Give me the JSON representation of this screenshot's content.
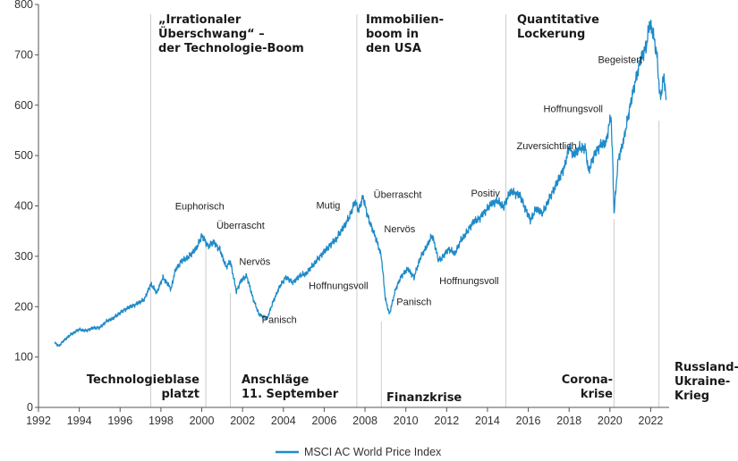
{
  "chart_data": {
    "type": "line",
    "title": "",
    "xlabel": "",
    "ylabel": "",
    "xlim": [
      1992,
      2022.9
    ],
    "ylim": [
      0,
      800
    ],
    "grid": false,
    "legend_position": "bottom-center",
    "colors": {
      "line": "#1f8bc9",
      "axis": "#555555",
      "guide": "#cccccc",
      "text": "#1a1a1a"
    },
    "x_ticks": [
      1992,
      1994,
      1996,
      1998,
      2000,
      2002,
      2004,
      2006,
      2008,
      2010,
      2012,
      2014,
      2016,
      2018,
      2020,
      2022
    ],
    "x_tick_labels": [
      "1992",
      "1994",
      "1996",
      "1998",
      "2000",
      "2002",
      "2004",
      "2006",
      "2008",
      "2010",
      "2012",
      "2014",
      "2016",
      "2018",
      "2020",
      "2022"
    ],
    "y_ticks": [
      0,
      100,
      200,
      300,
      400,
      500,
      600,
      700,
      800
    ],
    "y_tick_labels": [
      "0",
      "100",
      "200",
      "300",
      "400",
      "500",
      "600",
      "700",
      "800"
    ],
    "series": [
      {
        "name": "MSCI AC World Price Index",
        "x": [
          1992.8,
          1993.0,
          1993.3,
          1993.6,
          1994.0,
          1994.3,
          1994.7,
          1995.0,
          1995.3,
          1995.7,
          1996.0,
          1996.4,
          1996.8,
          1997.2,
          1997.5,
          1997.8,
          1998.1,
          1998.5,
          1998.7,
          1999.0,
          1999.4,
          1999.8,
          2000.0,
          2000.3,
          2000.6,
          2000.9,
          2001.2,
          2001.4,
          2001.7,
          2001.9,
          2002.2,
          2002.5,
          2002.8,
          2003.2,
          2003.5,
          2003.8,
          2004.1,
          2004.5,
          2004.8,
          2005.1,
          2005.5,
          2005.8,
          2006.2,
          2006.6,
          2006.9,
          2007.2,
          2007.5,
          2007.7,
          2007.9,
          2008.2,
          2008.5,
          2008.8,
          2009.0,
          2009.2,
          2009.5,
          2009.8,
          2010.1,
          2010.4,
          2010.7,
          2011.0,
          2011.3,
          2011.6,
          2011.8,
          2012.1,
          2012.4,
          2012.7,
          2013.0,
          2013.3,
          2013.6,
          2013.9,
          2014.2,
          2014.5,
          2014.8,
          2015.1,
          2015.4,
          2015.6,
          2015.9,
          2016.1,
          2016.4,
          2016.7,
          2017.0,
          2017.4,
          2017.8,
          2018.0,
          2018.2,
          2018.5,
          2018.8,
          2018.95,
          2019.2,
          2019.5,
          2019.8,
          2020.05,
          2020.15,
          2020.2,
          2020.4,
          2020.7,
          2020.9,
          2021.2,
          2021.5,
          2021.8,
          2021.95,
          2022.1,
          2022.3,
          2022.45,
          2022.55,
          2022.65,
          2022.75
        ],
        "values": [
          128,
          122,
          135,
          145,
          155,
          152,
          158,
          158,
          170,
          178,
          188,
          198,
          205,
          215,
          245,
          228,
          258,
          235,
          272,
          290,
          300,
          320,
          342,
          320,
          328,
          312,
          278,
          290,
          230,
          250,
          262,
          218,
          185,
          176,
          210,
          238,
          258,
          248,
          262,
          265,
          285,
          300,
          318,
          335,
          355,
          375,
          408,
          392,
          418,
          370,
          340,
          300,
          215,
          185,
          235,
          262,
          275,
          258,
          296,
          318,
          342,
          292,
          298,
          315,
          305,
          332,
          348,
          368,
          375,
          390,
          405,
          410,
          398,
          428,
          425,
          420,
          390,
          372,
          395,
          385,
          412,
          445,
          480,
          520,
          500,
          515,
          515,
          468,
          498,
          520,
          525,
          580,
          470,
          385,
          490,
          535,
          580,
          640,
          690,
          720,
          765,
          745,
          700,
          615,
          630,
          660,
          610
        ]
      }
    ],
    "events": [
      {
        "year": 1997.5,
        "lines": [
          "„Irrationaler",
          "Überschwang“ –",
          "der Technologie-Boom"
        ]
      },
      {
        "year": 2007.6,
        "lines": [
          "Immobilien-",
          "boom in",
          "den USA"
        ]
      },
      {
        "year": 2014.9,
        "lines": [
          "Quantitative",
          "Lockerung"
        ]
      },
      {
        "year": 2000.2,
        "lines": [
          "Technologieblase",
          "platzt"
        ]
      },
      {
        "year": 2001.4,
        "lines": [
          "Anschläge",
          "11. September"
        ]
      },
      {
        "year": 2008.8,
        "lines": [
          "Finanzkrise"
        ]
      },
      {
        "year": 2020.2,
        "lines": [
          "Corona-",
          "krise"
        ]
      },
      {
        "year": 2022.4,
        "lines": [
          "Russland-",
          "Ukraine-",
          "Krieg"
        ]
      }
    ],
    "sentiments": [
      {
        "label": "Euphorisch",
        "year": 1999.9,
        "value": 393
      },
      {
        "label": "Überrascht",
        "year": 2001.9,
        "value": 355
      },
      {
        "label": "Nervös",
        "year": 2002.6,
        "value": 283
      },
      {
        "label": "Panisch",
        "year": 2003.8,
        "value": 168
      },
      {
        "label": "Hoffnungsvoll",
        "year": 2006.7,
        "value": 235
      },
      {
        "label": "Mutig",
        "year": 2006.2,
        "value": 395
      },
      {
        "label": "Überrascht",
        "year": 2009.6,
        "value": 416
      },
      {
        "label": "Nervös",
        "year": 2009.7,
        "value": 348
      },
      {
        "label": "Panisch",
        "year": 2010.4,
        "value": 203
      },
      {
        "label": "Hoffnungsvoll",
        "year": 2013.1,
        "value": 245
      },
      {
        "label": "Positiv",
        "year": 2013.9,
        "value": 419
      },
      {
        "label": "Zuversichtlich",
        "year": 2016.9,
        "value": 513
      },
      {
        "label": "Hoffnungsvoll",
        "year": 2018.2,
        "value": 586
      },
      {
        "label": "Begeistert",
        "year": 2020.5,
        "value": 684
      }
    ]
  }
}
